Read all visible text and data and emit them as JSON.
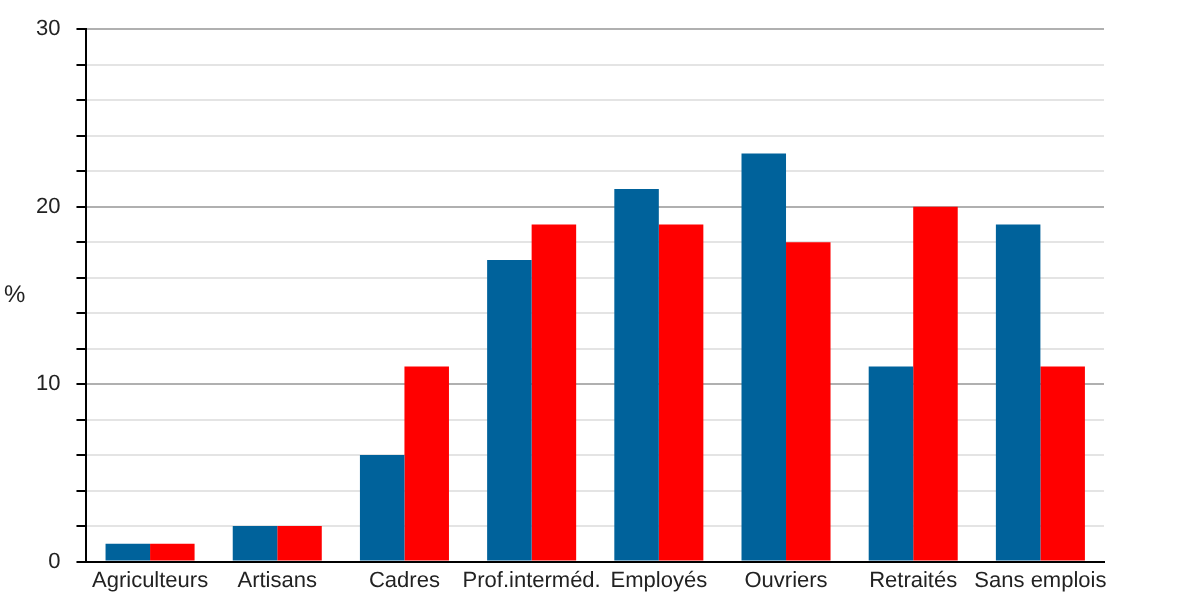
{
  "chart_data": {
    "type": "bar",
    "ylabel": "%",
    "categories": [
      "Agriculteurs",
      "Artisans",
      "Cadres",
      "Prof.interméd.",
      "Employés",
      "Ouvriers",
      "Retraités",
      "Sans emplois"
    ],
    "series": [
      {
        "color": "#00629b",
        "values": [
          1,
          2,
          6,
          17,
          21,
          23,
          11,
          19
        ]
      },
      {
        "color": "#ff0000",
        "values": [
          1,
          2,
          11,
          19,
          19,
          18,
          20,
          11
        ]
      }
    ],
    "ylim": [
      0,
      30
    ],
    "yticks": [
      0,
      {
        "value": 2,
        "label": null
      },
      {
        "value": 4,
        "label": null
      },
      {
        "value": 6,
        "label": null
      },
      {
        "value": 8,
        "label": null
      },
      10,
      {
        "value": 12,
        "label": null
      },
      {
        "value": 14,
        "label": null
      },
      {
        "value": 16,
        "label": null
      },
      {
        "value": 18,
        "label": null
      },
      20,
      {
        "value": 22,
        "label": null
      },
      {
        "value": 24,
        "label": null
      },
      {
        "value": 26,
        "label": null
      },
      {
        "value": 28,
        "label": null
      },
      30
    ],
    "grid": "y",
    "legend": false
  }
}
